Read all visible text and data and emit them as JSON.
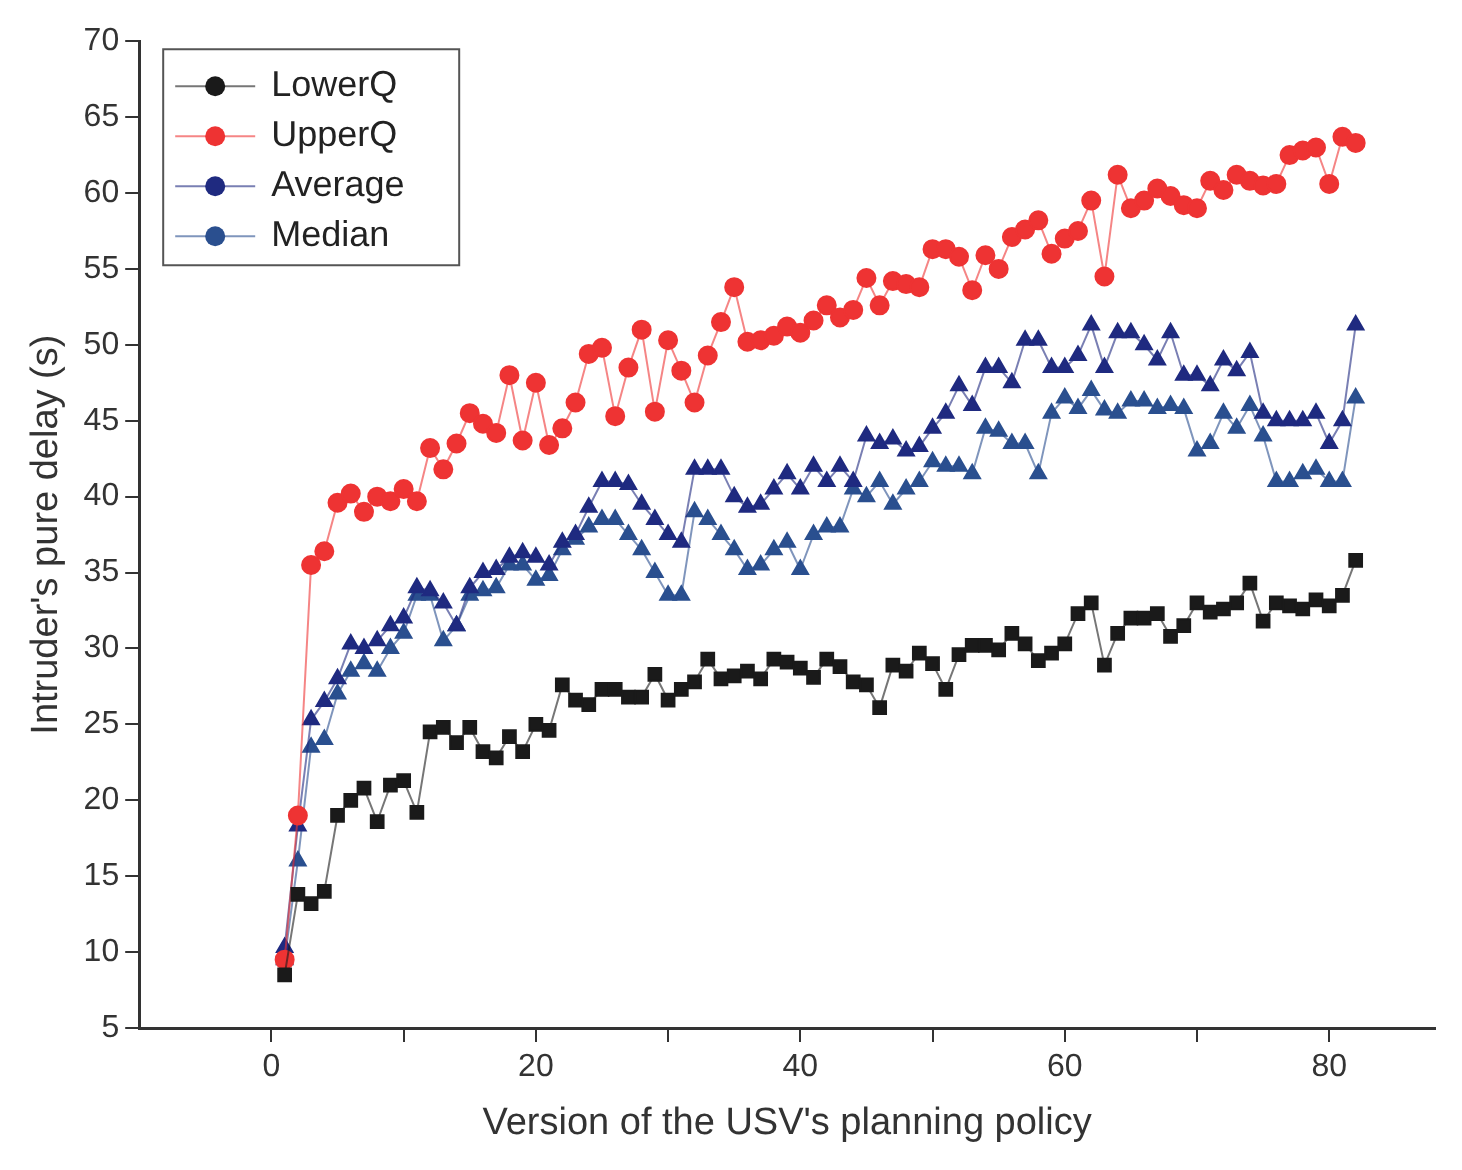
{
  "chart_data": {
    "type": "line",
    "xlabel": "Version of the USV's planning policy",
    "ylabel": "Intruder's pure delay (s)",
    "x": [
      1,
      2,
      3,
      4,
      5,
      6,
      7,
      8,
      9,
      10,
      11,
      12,
      13,
      14,
      15,
      16,
      17,
      18,
      19,
      20,
      21,
      22,
      23,
      24,
      25,
      26,
      27,
      28,
      29,
      30,
      31,
      32,
      33,
      34,
      35,
      36,
      37,
      38,
      39,
      40,
      41,
      42,
      43,
      44,
      45,
      46,
      47,
      48,
      49,
      50,
      51,
      52,
      53,
      54,
      55,
      56,
      57,
      58,
      59,
      60,
      61,
      62,
      63,
      64,
      65,
      66,
      67,
      68,
      69,
      70,
      71,
      72,
      73,
      74,
      75,
      76,
      77,
      78,
      79,
      80,
      81,
      82
    ],
    "series": [
      {
        "name": "LowerQ",
        "color": "#1a1a1a",
        "marker": "square",
        "values": [
          8.5,
          13.8,
          13.2,
          14,
          19,
          20,
          20.8,
          18.6,
          21,
          21.3,
          19.2,
          24.5,
          24.8,
          23.8,
          24.8,
          23.2,
          22.8,
          24.2,
          23.2,
          25,
          24.6,
          27.6,
          26.6,
          26.3,
          27.3,
          27.3,
          26.8,
          26.8,
          28.3,
          26.6,
          27.3,
          27.8,
          29.3,
          28,
          28.2,
          28.5,
          28,
          29.3,
          29.1,
          28.7,
          28.1,
          29.3,
          28.8,
          27.8,
          27.6,
          26.1,
          28.9,
          28.5,
          29.7,
          29,
          27.3,
          29.6,
          30.2,
          30.2,
          29.9,
          31,
          30.3,
          29.2,
          29.7,
          30.3,
          32.3,
          33,
          28.9,
          31,
          32,
          32,
          32.3,
          30.8,
          31.5,
          33,
          32.4,
          32.6,
          33,
          34.3,
          31.8,
          33,
          32.8,
          32.6,
          33.2,
          32.8,
          33.5,
          35.8
        ]
      },
      {
        "name": "UpperQ",
        "color": "#ee3333",
        "marker": "circle",
        "values": [
          9.5,
          19,
          35.5,
          36.4,
          39.6,
          40.2,
          39,
          40,
          39.7,
          40.5,
          39.7,
          43.2,
          41.8,
          43.5,
          45.5,
          44.8,
          44.2,
          48,
          43.7,
          47.5,
          43.4,
          44.5,
          46.2,
          49.4,
          49.8,
          45.3,
          48.5,
          51,
          45.6,
          50.3,
          48.3,
          46.2,
          49.3,
          51.5,
          53.8,
          50.2,
          50.3,
          50.6,
          51.2,
          50.8,
          51.6,
          52.6,
          51.8,
          52.3,
          54.4,
          52.6,
          54.2,
          54,
          53.8,
          56.3,
          56.3,
          55.8,
          53.6,
          55.9,
          55,
          57.1,
          57.6,
          58.2,
          56,
          57,
          57.5,
          59.5,
          54.5,
          61.2,
          59,
          59.5,
          60.3,
          59.8,
          59.2,
          59,
          60.8,
          60.2,
          61.2,
          60.8,
          60.5,
          60.6,
          62.5,
          62.8,
          63,
          60.6,
          63.7,
          63.3
        ]
      },
      {
        "name": "Average",
        "color": "#1f2a80",
        "marker": "triangle",
        "values": [
          10.3,
          18.3,
          25.3,
          26.5,
          28,
          30.3,
          30,
          30.5,
          31.5,
          32,
          34,
          33.8,
          33,
          31.5,
          34,
          35,
          35.2,
          36,
          36.3,
          36,
          35.5,
          37,
          37.5,
          39.3,
          41,
          41,
          40.8,
          39.5,
          38.5,
          37.5,
          37,
          41.8,
          41.8,
          41.8,
          40,
          39.3,
          39.5,
          40.5,
          41.5,
          40.5,
          42,
          41,
          42,
          41,
          44,
          43.5,
          43.8,
          43,
          43.3,
          44.5,
          45.5,
          47.3,
          46,
          48.5,
          48.5,
          47.5,
          50.3,
          50.3,
          48.5,
          48.5,
          49.3,
          51.3,
          48.5,
          50.8,
          50.8,
          50,
          49,
          50.8,
          48,
          48,
          47.3,
          49,
          48.3,
          49.5,
          45.5,
          45,
          45,
          45,
          45.5,
          43.5,
          45,
          51.3
        ]
      },
      {
        "name": "Median",
        "color": "#2a4f8f",
        "marker": "triangle",
        "values": [
          9.5,
          16,
          23.5,
          24,
          27,
          28.5,
          29,
          28.5,
          30,
          31,
          33.5,
          33.5,
          30.5,
          31.5,
          33.5,
          33.8,
          34,
          35.5,
          35.5,
          34.5,
          34.8,
          36.5,
          37.2,
          38,
          38.5,
          38.5,
          37.5,
          36.5,
          35,
          33.5,
          33.5,
          39,
          38.5,
          37.5,
          36.5,
          35.2,
          35.5,
          36.5,
          37,
          35.2,
          37.5,
          38,
          38,
          40.5,
          40,
          41,
          39.5,
          40.5,
          41,
          42.3,
          42,
          42,
          41.5,
          44.5,
          44.3,
          43.5,
          43.5,
          41.5,
          45.5,
          46.5,
          45.8,
          47,
          45.7,
          45.5,
          46.3,
          46.3,
          45.8,
          46,
          45.8,
          43,
          43.5,
          45.5,
          44.5,
          46,
          44,
          41,
          41,
          41.5,
          41.8,
          41,
          41,
          46.5
        ]
      }
    ],
    "xlim": [
      -10,
      88
    ],
    "xticks": [
      0,
      {
        "value": 10,
        "label": null
      },
      20,
      {
        "value": 30,
        "label": null
      },
      40,
      {
        "value": 50,
        "label": null
      },
      60,
      {
        "value": 70,
        "label": null
      },
      80
    ],
    "ylim": [
      5,
      70
    ],
    "yticks": [
      5,
      10,
      15,
      20,
      25,
      30,
      35,
      40,
      45,
      50,
      55,
      60,
      65,
      70
    ],
    "grid": false,
    "legend": "top left",
    "line_style": "solid"
  }
}
